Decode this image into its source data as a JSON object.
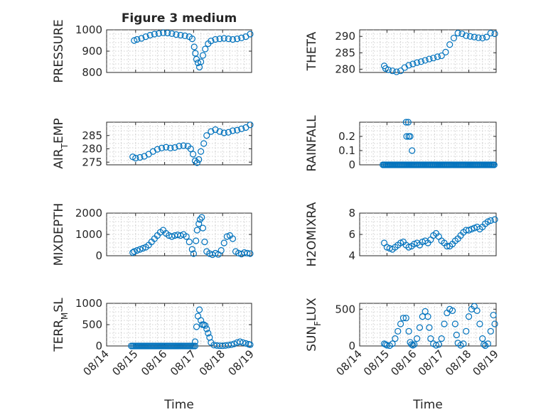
{
  "figure": {
    "title": "Figure 3 medium",
    "marker_color": "#0072BD",
    "marker_shape": "circle-open"
  },
  "chart_data": [
    {
      "type": "scatter",
      "title": "Figure 3 medium",
      "ylabel": "PRESSURE",
      "ylabel_parts": [
        {
          "t": "PRESSURE"
        }
      ],
      "xlabel": "",
      "xlim": [
        0,
        5
      ],
      "ylim": [
        800,
        1000
      ],
      "yticks": [
        800,
        900,
        1000
      ],
      "ytick_labels": [
        "800",
        "900",
        "1000"
      ],
      "xticks": [
        0,
        1,
        2,
        3,
        4,
        5
      ],
      "xtick_labels": [],
      "grid": true,
      "points": [
        [
          0.95,
          950
        ],
        [
          1.05,
          955
        ],
        [
          1.2,
          960
        ],
        [
          1.35,
          968
        ],
        [
          1.5,
          975
        ],
        [
          1.65,
          980
        ],
        [
          1.8,
          983
        ],
        [
          1.95,
          986
        ],
        [
          2.1,
          985
        ],
        [
          2.25,
          982
        ],
        [
          2.4,
          978
        ],
        [
          2.55,
          975
        ],
        [
          2.7,
          972
        ],
        [
          2.85,
          968
        ],
        [
          2.95,
          958
        ],
        [
          3.02,
          920
        ],
        [
          3.06,
          890
        ],
        [
          3.1,
          862
        ],
        [
          3.15,
          845
        ],
        [
          3.2,
          825
        ],
        [
          3.25,
          850
        ],
        [
          3.32,
          880
        ],
        [
          3.4,
          910
        ],
        [
          3.5,
          935
        ],
        [
          3.6,
          948
        ],
        [
          3.75,
          955
        ],
        [
          3.9,
          958
        ],
        [
          4.05,
          960
        ],
        [
          4.2,
          958
        ],
        [
          4.35,
          955
        ],
        [
          4.5,
          958
        ],
        [
          4.65,
          962
        ],
        [
          4.8,
          968
        ],
        [
          4.95,
          980
        ]
      ]
    },
    {
      "type": "scatter",
      "ylabel": "THETA",
      "ylabel_parts": [
        {
          "t": "THETA"
        }
      ],
      "xlabel": "",
      "xlim": [
        0,
        5
      ],
      "ylim": [
        279,
        292
      ],
      "yticks": [
        280,
        285,
        290
      ],
      "ytick_labels": [
        "280",
        "285",
        "290"
      ],
      "xticks": [
        0,
        1,
        2,
        3,
        4,
        5
      ],
      "xtick_labels": [],
      "grid": true,
      "points": [
        [
          0.9,
          281
        ],
        [
          0.95,
          280.2
        ],
        [
          1.05,
          279.8
        ],
        [
          1.2,
          279.5
        ],
        [
          1.35,
          279.2
        ],
        [
          1.5,
          279.5
        ],
        [
          1.65,
          280.5
        ],
        [
          1.8,
          281.2
        ],
        [
          1.95,
          281.6
        ],
        [
          2.1,
          282
        ],
        [
          2.25,
          282.3
        ],
        [
          2.4,
          282.7
        ],
        [
          2.55,
          283.1
        ],
        [
          2.7,
          283.4
        ],
        [
          2.85,
          283.8
        ],
        [
          3.0,
          284.1
        ],
        [
          3.15,
          285.2
        ],
        [
          3.3,
          287.5
        ],
        [
          3.45,
          289.5
        ],
        [
          3.6,
          291
        ],
        [
          3.75,
          290.8
        ],
        [
          3.9,
          290.2
        ],
        [
          4.05,
          290
        ],
        [
          4.2,
          289.8
        ],
        [
          4.35,
          289.6
        ],
        [
          4.5,
          289.5
        ],
        [
          4.65,
          289.8
        ],
        [
          4.8,
          291
        ],
        [
          4.95,
          290.8
        ]
      ]
    },
    {
      "type": "scatter",
      "ylabel": "AIR_TEMP",
      "ylabel_parts": [
        {
          "t": "AIR"
        },
        {
          "t": "T",
          "sub": true
        },
        {
          "t": "EMP"
        }
      ],
      "xlabel": "",
      "xlim": [
        0,
        5
      ],
      "ylim": [
        274,
        290
      ],
      "yticks": [
        275,
        280,
        285
      ],
      "ytick_labels": [
        "275",
        "280",
        "285"
      ],
      "xticks": [
        0,
        1,
        2,
        3,
        4,
        5
      ],
      "xtick_labels": [],
      "grid": true,
      "points": [
        [
          0.9,
          277
        ],
        [
          1.0,
          276.5
        ],
        [
          1.15,
          276.8
        ],
        [
          1.3,
          277.2
        ],
        [
          1.45,
          278
        ],
        [
          1.6,
          279
        ],
        [
          1.75,
          279.8
        ],
        [
          1.9,
          280.3
        ],
        [
          2.05,
          280.6
        ],
        [
          2.2,
          280.3
        ],
        [
          2.35,
          280.5
        ],
        [
          2.5,
          281
        ],
        [
          2.65,
          281.2
        ],
        [
          2.8,
          281
        ],
        [
          2.9,
          280
        ],
        [
          2.98,
          278
        ],
        [
          3.05,
          275.5
        ],
        [
          3.12,
          274.8
        ],
        [
          3.18,
          276
        ],
        [
          3.25,
          279
        ],
        [
          3.35,
          282
        ],
        [
          3.45,
          285
        ],
        [
          3.6,
          286.5
        ],
        [
          3.75,
          287.2
        ],
        [
          3.9,
          286.5
        ],
        [
          4.05,
          286
        ],
        [
          4.2,
          286.2
        ],
        [
          4.35,
          286.8
        ],
        [
          4.5,
          287
        ],
        [
          4.65,
          287.5
        ],
        [
          4.8,
          288
        ],
        [
          4.95,
          289
        ]
      ]
    },
    {
      "type": "scatter",
      "ylabel": "RAINFALL",
      "ylabel_parts": [
        {
          "t": "RAINFALL"
        }
      ],
      "xlabel": "",
      "xlim": [
        0,
        5
      ],
      "ylim": [
        0,
        0.3
      ],
      "yticks": [
        0,
        0.1,
        0.2
      ],
      "ytick_labels": [
        "0",
        "0.1",
        "0.2"
      ],
      "xticks": [
        0,
        1,
        2,
        3,
        4,
        5
      ],
      "xtick_labels": [],
      "grid": true,
      "zero_run": [
        0.85,
        4.95,
        0.04
      ],
      "points": [
        [
          1.7,
          0.3
        ],
        [
          1.78,
          0.3
        ],
        [
          1.72,
          0.2
        ],
        [
          1.8,
          0.2
        ],
        [
          1.85,
          0.2
        ],
        [
          1.92,
          0.1
        ]
      ]
    },
    {
      "type": "scatter",
      "ylabel": "MIXDEPTH",
      "ylabel_parts": [
        {
          "t": "MIXDEPTH"
        }
      ],
      "xlabel": "",
      "xlim": [
        0,
        5
      ],
      "ylim": [
        0,
        2000
      ],
      "yticks": [
        0,
        1000,
        2000
      ],
      "ytick_labels": [
        "0",
        "1000",
        "2000"
      ],
      "xticks": [
        0,
        1,
        2,
        3,
        4,
        5
      ],
      "xtick_labels": [],
      "grid": true,
      "points": [
        [
          0.9,
          150
        ],
        [
          0.95,
          200
        ],
        [
          1.05,
          250
        ],
        [
          1.15,
          300
        ],
        [
          1.25,
          350
        ],
        [
          1.35,
          400
        ],
        [
          1.45,
          500
        ],
        [
          1.55,
          650
        ],
        [
          1.65,
          800
        ],
        [
          1.75,
          950
        ],
        [
          1.85,
          1100
        ],
        [
          1.95,
          1200
        ],
        [
          2.05,
          1050
        ],
        [
          2.15,
          950
        ],
        [
          2.25,
          900
        ],
        [
          2.35,
          950
        ],
        [
          2.45,
          980
        ],
        [
          2.55,
          950
        ],
        [
          2.65,
          1000
        ],
        [
          2.75,
          900
        ],
        [
          2.85,
          650
        ],
        [
          2.95,
          300
        ],
        [
          3.0,
          100
        ],
        [
          3.08,
          700
        ],
        [
          3.12,
          1200
        ],
        [
          3.18,
          1500
        ],
        [
          3.22,
          1700
        ],
        [
          3.28,
          1800
        ],
        [
          3.32,
          1300
        ],
        [
          3.38,
          650
        ],
        [
          3.45,
          200
        ],
        [
          3.55,
          100
        ],
        [
          3.65,
          50
        ],
        [
          3.75,
          120
        ],
        [
          3.85,
          60
        ],
        [
          3.95,
          250
        ],
        [
          4.05,
          600
        ],
        [
          4.15,
          900
        ],
        [
          4.25,
          950
        ],
        [
          4.35,
          800
        ],
        [
          4.45,
          200
        ],
        [
          4.55,
          120
        ],
        [
          4.65,
          80
        ],
        [
          4.75,
          150
        ],
        [
          4.85,
          120
        ],
        [
          4.95,
          100
        ]
      ]
    },
    {
      "type": "scatter",
      "ylabel": "H2OMIXRA",
      "ylabel_parts": [
        {
          "t": "H2OMIXRA"
        }
      ],
      "xlabel": "",
      "xlim": [
        0,
        5
      ],
      "ylim": [
        4,
        8
      ],
      "yticks": [
        4,
        6,
        8
      ],
      "ytick_labels": [
        "4",
        "6",
        "8"
      ],
      "xticks": [
        0,
        1,
        2,
        3,
        4,
        5
      ],
      "xtick_labels": [],
      "grid": true,
      "points": [
        [
          0.9,
          5.2
        ],
        [
          1.0,
          4.8
        ],
        [
          1.1,
          4.7
        ],
        [
          1.2,
          4.6
        ],
        [
          1.3,
          4.8
        ],
        [
          1.4,
          5.0
        ],
        [
          1.5,
          5.2
        ],
        [
          1.6,
          5.3
        ],
        [
          1.7,
          5.0
        ],
        [
          1.8,
          4.8
        ],
        [
          1.9,
          4.9
        ],
        [
          2.0,
          5.1
        ],
        [
          2.1,
          5.2
        ],
        [
          2.2,
          5.0
        ],
        [
          2.3,
          5.3
        ],
        [
          2.4,
          5.4
        ],
        [
          2.5,
          5.2
        ],
        [
          2.6,
          5.5
        ],
        [
          2.7,
          5.9
        ],
        [
          2.8,
          6.1
        ],
        [
          2.9,
          5.8
        ],
        [
          3.0,
          5.4
        ],
        [
          3.1,
          5.2
        ],
        [
          3.2,
          4.9
        ],
        [
          3.3,
          4.9
        ],
        [
          3.4,
          5.1
        ],
        [
          3.5,
          5.4
        ],
        [
          3.6,
          5.6
        ],
        [
          3.7,
          5.9
        ],
        [
          3.8,
          6.2
        ],
        [
          3.9,
          6.4
        ],
        [
          4.0,
          6.4
        ],
        [
          4.1,
          6.5
        ],
        [
          4.2,
          6.6
        ],
        [
          4.3,
          6.7
        ],
        [
          4.4,
          6.5
        ],
        [
          4.5,
          6.7
        ],
        [
          4.6,
          7.0
        ],
        [
          4.7,
          7.2
        ],
        [
          4.8,
          7.3
        ],
        [
          4.95,
          7.4
        ]
      ]
    },
    {
      "type": "scatter",
      "ylabel": "TERR_MSL",
      "ylabel_parts": [
        {
          "t": "TERR"
        },
        {
          "t": "M",
          "sub": true
        },
        {
          "t": "SL"
        }
      ],
      "xlabel": "Time",
      "xlim": [
        0,
        5
      ],
      "ylim": [
        0,
        1000
      ],
      "yticks": [
        0,
        500,
        1000
      ],
      "ytick_labels": [
        "0",
        "500",
        "1000"
      ],
      "xticks": [
        0,
        1,
        2,
        3,
        4,
        5
      ],
      "xtick_labels": [
        "08/14",
        "08/15",
        "08/16",
        "08/17",
        "08/18",
        "08/19"
      ],
      "grid": true,
      "zero_run": [
        0.85,
        3.05,
        0.05
      ],
      "points": [
        [
          3.05,
          100
        ],
        [
          3.1,
          450
        ],
        [
          3.15,
          700
        ],
        [
          3.2,
          850
        ],
        [
          3.25,
          600
        ],
        [
          3.3,
          500
        ],
        [
          3.35,
          500
        ],
        [
          3.4,
          480
        ],
        [
          3.45,
          400
        ],
        [
          3.5,
          300
        ],
        [
          3.55,
          200
        ],
        [
          3.6,
          80
        ],
        [
          3.7,
          20
        ],
        [
          3.8,
          10
        ],
        [
          3.9,
          5
        ],
        [
          4.0,
          5
        ],
        [
          4.1,
          10
        ],
        [
          4.2,
          20
        ],
        [
          4.3,
          30
        ],
        [
          4.4,
          50
        ],
        [
          4.5,
          80
        ],
        [
          4.6,
          100
        ],
        [
          4.7,
          80
        ],
        [
          4.8,
          60
        ],
        [
          4.9,
          40
        ],
        [
          4.95,
          30
        ]
      ]
    },
    {
      "type": "scatter",
      "ylabel": "SUN_FLUX",
      "ylabel_parts": [
        {
          "t": "SUN"
        },
        {
          "t": "F",
          "sub": true
        },
        {
          "t": "LUX"
        }
      ],
      "xlabel": "Time",
      "xlim": [
        0,
        5
      ],
      "ylim": [
        0,
        580
      ],
      "yticks": [
        0,
        500
      ],
      "ytick_labels": [
        "0",
        "500"
      ],
      "xticks": [
        0,
        1,
        2,
        3,
        4,
        5
      ],
      "xtick_labels": [
        "08/14",
        "08/15",
        "08/16",
        "08/17",
        "08/18",
        "08/19"
      ],
      "grid": true,
      "points": [
        [
          0.9,
          30
        ],
        [
          0.95,
          20
        ],
        [
          1.0,
          10
        ],
        [
          1.1,
          5
        ],
        [
          1.2,
          30
        ],
        [
          1.3,
          100
        ],
        [
          1.4,
          200
        ],
        [
          1.5,
          300
        ],
        [
          1.6,
          380
        ],
        [
          1.7,
          380
        ],
        [
          1.8,
          200
        ],
        [
          1.85,
          50
        ],
        [
          1.9,
          20
        ],
        [
          1.95,
          10
        ],
        [
          2.0,
          20
        ],
        [
          2.1,
          100
        ],
        [
          2.2,
          250
        ],
        [
          2.3,
          400
        ],
        [
          2.4,
          470
        ],
        [
          2.5,
          400
        ],
        [
          2.55,
          250
        ],
        [
          2.6,
          100
        ],
        [
          2.7,
          30
        ],
        [
          2.8,
          10
        ],
        [
          2.9,
          20
        ],
        [
          3.0,
          100
        ],
        [
          3.1,
          300
        ],
        [
          3.2,
          450
        ],
        [
          3.3,
          500
        ],
        [
          3.4,
          480
        ],
        [
          3.5,
          300
        ],
        [
          3.55,
          150
        ],
        [
          3.6,
          40
        ],
        [
          3.7,
          10
        ],
        [
          3.8,
          30
        ],
        [
          3.9,
          200
        ],
        [
          4.0,
          400
        ],
        [
          4.1,
          500
        ],
        [
          4.2,
          540
        ],
        [
          4.3,
          480
        ],
        [
          4.4,
          300
        ],
        [
          4.5,
          100
        ],
        [
          4.55,
          20
        ],
        [
          4.6,
          5
        ],
        [
          4.7,
          30
        ],
        [
          4.8,
          200
        ],
        [
          4.9,
          420
        ],
        [
          4.95,
          300
        ]
      ]
    }
  ]
}
